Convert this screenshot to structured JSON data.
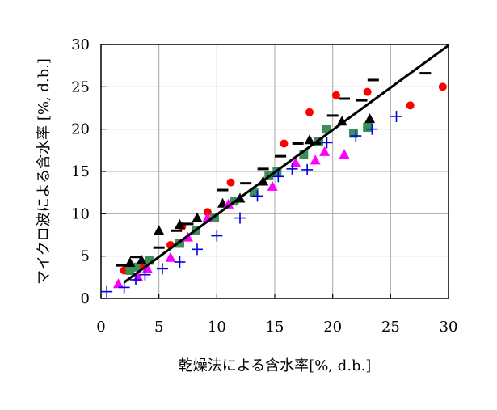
{
  "chart_data": {
    "type": "scatter",
    "title": "",
    "xlabel": "乾燥法による含水率[%, d.b.]",
    "ylabel": "マイクロ波による含水率 [%, d.b.]",
    "xlim": [
      0,
      30
    ],
    "ylim": [
      0,
      30
    ],
    "xticks": [
      "0",
      "5",
      "10",
      "15",
      "20",
      "25",
      "30"
    ],
    "yticks": [
      "0",
      "5",
      "10",
      "15",
      "20",
      "25",
      "30"
    ],
    "grid": true,
    "legend": "none",
    "colors": {
      "circle": "#ff0000",
      "square": "#3a8f5a",
      "triangle_black": "#000000",
      "triangle_magenta": "#ff00ff",
      "dash": "#000000",
      "plus": "#0000dd",
      "line": "#000000",
      "grid": "#a8a8a8"
    },
    "series": [
      {
        "marker": "circle",
        "points": [
          [
            2.0,
            3.3
          ],
          [
            3.5,
            3.8
          ],
          [
            6.0,
            6.3
          ],
          [
            7.0,
            8.5
          ],
          [
            9.2,
            10.2
          ],
          [
            11.2,
            13.7
          ],
          [
            15.8,
            18.3
          ],
          [
            18.0,
            22.0
          ],
          [
            20.3,
            24.0
          ],
          [
            23.0,
            24.4
          ],
          [
            26.7,
            22.8
          ],
          [
            29.5,
            25.0
          ]
        ]
      },
      {
        "marker": "square",
        "points": [
          [
            2.5,
            3.3
          ],
          [
            3.0,
            3.7
          ],
          [
            4.2,
            4.5
          ],
          [
            6.8,
            6.5
          ],
          [
            8.2,
            8.0
          ],
          [
            9.8,
            9.5
          ],
          [
            11.5,
            11.5
          ],
          [
            13.2,
            12.5
          ],
          [
            14.5,
            14.5
          ],
          [
            15.2,
            15.0
          ],
          [
            17.5,
            17.0
          ],
          [
            18.8,
            18.5
          ],
          [
            19.5,
            20.0
          ],
          [
            21.8,
            19.5
          ],
          [
            23.0,
            20.2
          ]
        ]
      },
      {
        "marker": "triangle_black",
        "points": [
          [
            2.5,
            4.2
          ],
          [
            3.5,
            4.5
          ],
          [
            5.0,
            8.0
          ],
          [
            6.8,
            8.7
          ],
          [
            8.3,
            9.5
          ],
          [
            10.5,
            11.2
          ],
          [
            12.0,
            11.8
          ],
          [
            14.0,
            13.8
          ],
          [
            18.0,
            18.7
          ],
          [
            20.8,
            20.9
          ],
          [
            23.2,
            21.2
          ]
        ]
      },
      {
        "marker": "triangle_magenta",
        "points": [
          [
            1.5,
            1.7
          ],
          [
            3.2,
            2.5
          ],
          [
            4.0,
            3.5
          ],
          [
            6.0,
            4.8
          ],
          [
            7.5,
            7.2
          ],
          [
            9.2,
            9.5
          ],
          [
            11.0,
            11.1
          ],
          [
            14.8,
            13.2
          ],
          [
            16.8,
            16.0
          ],
          [
            18.5,
            16.3
          ],
          [
            19.3,
            17.3
          ],
          [
            21.0,
            17.0
          ]
        ]
      },
      {
        "marker": "dash",
        "points": [
          [
            1.8,
            3.9
          ],
          [
            3.0,
            4.9
          ],
          [
            5.0,
            6.0
          ],
          [
            6.5,
            8.0
          ],
          [
            7.5,
            8.8
          ],
          [
            10.5,
            12.8
          ],
          [
            12.5,
            13.6
          ],
          [
            14.0,
            15.3
          ],
          [
            15.5,
            16.8
          ],
          [
            17.0,
            18.3
          ],
          [
            18.5,
            18.3
          ],
          [
            20.0,
            21.6
          ],
          [
            21.0,
            23.6
          ],
          [
            22.5,
            23.4
          ],
          [
            23.5,
            25.8
          ],
          [
            28.0,
            26.6
          ]
        ]
      },
      {
        "marker": "plus",
        "points": [
          [
            0.5,
            0.8
          ],
          [
            2.0,
            1.3
          ],
          [
            3.0,
            2.2
          ],
          [
            3.8,
            2.8
          ],
          [
            5.3,
            3.5
          ],
          [
            6.8,
            4.3
          ],
          [
            8.3,
            5.8
          ],
          [
            10.0,
            7.4
          ],
          [
            12.0,
            9.5
          ],
          [
            13.5,
            12.1
          ],
          [
            15.3,
            14.4
          ],
          [
            16.5,
            15.3
          ],
          [
            17.8,
            15.2
          ],
          [
            19.5,
            18.4
          ],
          [
            22.0,
            19.2
          ],
          [
            23.4,
            20.0
          ],
          [
            25.5,
            21.5
          ]
        ]
      }
    ],
    "regression_line": {
      "x": [
        2.0,
        30.0
      ],
      "y": [
        1.9,
        29.9
      ]
    }
  }
}
